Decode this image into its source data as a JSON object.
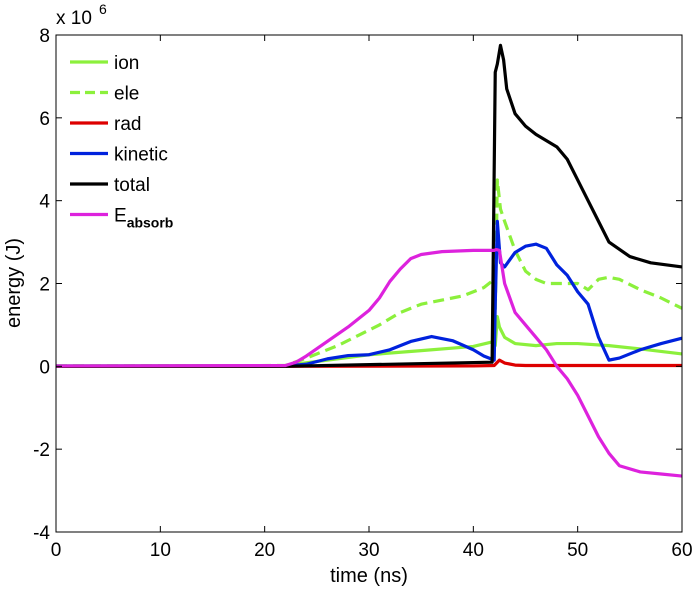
{
  "chart_data": {
    "type": "line",
    "xlabel": "time (ns)",
    "ylabel": "energy (J)",
    "y_multiplier_label": "x 10",
    "y_multiplier_exponent": "6",
    "xlim": [
      0,
      60
    ],
    "ylim": [
      -4,
      8
    ],
    "xticks": [
      0,
      10,
      20,
      30,
      40,
      50,
      60
    ],
    "yticks": [
      -4,
      -2,
      0,
      2,
      4,
      6,
      8
    ],
    "grid": false,
    "legend_position": "top-left",
    "series": [
      {
        "name": "ion",
        "name_sub": "",
        "color": "#8cf03c",
        "dash": "solid",
        "x": [
          0,
          22,
          26,
          30,
          35,
          40,
          42,
          42.1,
          42.3,
          42.5,
          43,
          44,
          46,
          48,
          50,
          53,
          56,
          60
        ],
        "y": [
          0.01,
          0.02,
          0.15,
          0.28,
          0.38,
          0.48,
          0.6,
          0.5,
          1.2,
          0.95,
          0.7,
          0.55,
          0.5,
          0.55,
          0.55,
          0.5,
          0.42,
          0.3
        ]
      },
      {
        "name": "ele",
        "name_sub": "",
        "color": "#8cf03c",
        "dash": "dashed",
        "x": [
          0,
          22,
          24,
          27,
          29,
          31,
          33,
          35,
          37,
          39,
          41,
          42,
          42.1,
          42.3,
          42.6,
          43,
          44,
          45,
          46,
          47,
          48,
          50,
          51,
          52,
          53,
          54,
          56,
          58,
          60
        ],
        "y": [
          0.01,
          0.02,
          0.2,
          0.5,
          0.75,
          1.0,
          1.3,
          1.5,
          1.6,
          1.7,
          1.9,
          2.1,
          1.3,
          4.5,
          3.8,
          3.5,
          2.8,
          2.3,
          2.1,
          2.0,
          2.0,
          2.0,
          1.85,
          2.1,
          2.15,
          2.1,
          1.85,
          1.65,
          1.4
        ]
      },
      {
        "name": "rad",
        "name_sub": "",
        "color": "#dd0000",
        "dash": "solid",
        "x": [
          0,
          22,
          40,
          42,
          42.5,
          43,
          44,
          45,
          60
        ],
        "y": [
          0.0,
          0.0,
          0.01,
          0.02,
          0.15,
          0.08,
          0.03,
          0.02,
          0.02
        ]
      },
      {
        "name": "kinetic",
        "name_sub": "",
        "color": "#0022dd",
        "dash": "solid",
        "x": [
          0,
          22,
          24,
          26,
          28,
          30,
          32,
          34,
          36,
          38,
          40,
          41,
          42,
          42.1,
          42.3,
          42.6,
          43,
          44,
          45,
          46,
          47,
          48,
          49,
          50,
          51,
          52,
          53,
          54,
          56,
          58,
          60
        ],
        "y": [
          0.01,
          0.01,
          0.05,
          0.18,
          0.26,
          0.28,
          0.4,
          0.6,
          0.72,
          0.62,
          0.4,
          0.25,
          0.15,
          1.5,
          3.5,
          2.5,
          2.4,
          2.75,
          2.9,
          2.95,
          2.85,
          2.45,
          2.2,
          1.8,
          1.5,
          0.7,
          0.15,
          0.2,
          0.4,
          0.55,
          0.68
        ]
      },
      {
        "name": "total",
        "name_sub": "",
        "color": "#000000",
        "dash": "solid",
        "x": [
          0,
          22,
          41.8,
          42.1,
          42.3,
          42.6,
          42.9,
          43.2,
          43.6,
          44,
          45,
          46,
          48,
          49,
          50,
          51,
          52,
          53,
          55,
          57,
          60
        ],
        "y": [
          0.0,
          0.0,
          0.1,
          7.1,
          7.3,
          7.75,
          7.4,
          6.7,
          6.4,
          6.1,
          5.8,
          5.6,
          5.3,
          5.0,
          4.5,
          4.0,
          3.5,
          3.0,
          2.65,
          2.5,
          2.4
        ]
      },
      {
        "name": "E",
        "name_sub": "absorb",
        "color": "#dd22dd",
        "dash": "solid",
        "x": [
          0,
          22,
          23,
          24,
          26,
          28,
          30,
          31,
          32,
          33,
          34,
          35,
          37,
          40,
          42,
          42.2,
          42.5,
          43,
          44,
          45,
          46,
          47,
          48,
          49,
          50,
          51,
          52,
          53,
          54,
          56,
          58,
          60
        ],
        "y": [
          0.01,
          0.02,
          0.1,
          0.25,
          0.6,
          0.95,
          1.35,
          1.65,
          2.05,
          2.35,
          2.6,
          2.7,
          2.77,
          2.8,
          2.8,
          2.82,
          2.8,
          2.0,
          1.3,
          1.0,
          0.7,
          0.4,
          0.0,
          -0.3,
          -0.7,
          -1.2,
          -1.7,
          -2.1,
          -2.4,
          -2.55,
          -2.6,
          -2.65
        ]
      }
    ]
  }
}
